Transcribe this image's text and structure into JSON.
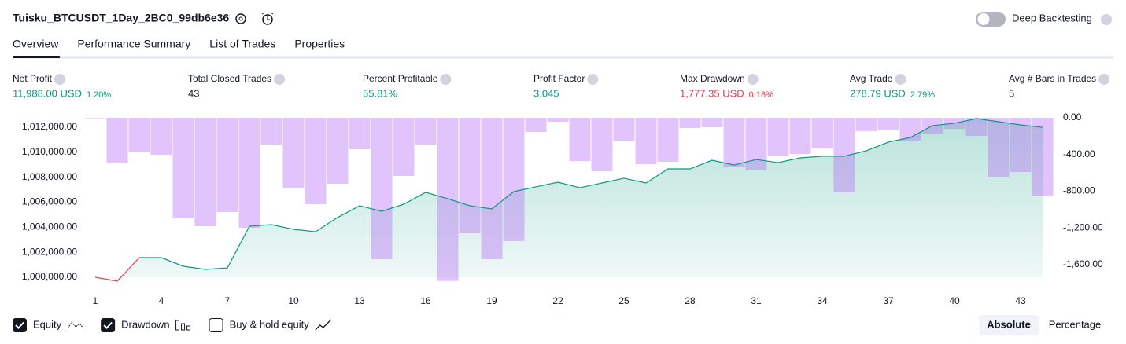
{
  "header": {
    "title": "Tuisku_BTCUSDT_1Day_2BC0_99db6e36",
    "toggle_label": "Deep Backtesting"
  },
  "tabs": [
    "Overview",
    "Performance Summary",
    "List of Trades",
    "Properties"
  ],
  "stats": [
    {
      "label": "Net Profit",
      "value": "11,988.00 USD",
      "percent": "1.20%",
      "tone": "green"
    },
    {
      "label": "Total Closed Trades",
      "value": "43",
      "tone": "plain"
    },
    {
      "label": "Percent Profitable",
      "value": "55.81%",
      "tone": "green"
    },
    {
      "label": "Profit Factor",
      "value": "3.045",
      "tone": "green"
    },
    {
      "label": "Max Drawdown",
      "value": "1,777.35 USD",
      "percent": "0.18%",
      "tone": "red"
    },
    {
      "label": "Avg Trade",
      "value": "278.79 USD",
      "percent": "2.79%",
      "tone": "green"
    },
    {
      "label": "Avg # Bars in Trades",
      "value": "5",
      "tone": "plain"
    }
  ],
  "legend": [
    {
      "name": "Equity",
      "checked": true
    },
    {
      "name": "Drawdown",
      "checked": true
    },
    {
      "name": "Buy & hold equity",
      "checked": false
    }
  ],
  "buttons": [
    "Absolute",
    "Percentage"
  ],
  "chart_data": {
    "type": "equity_drawdown",
    "x": [
      1,
      2,
      3,
      4,
      5,
      6,
      7,
      8,
      9,
      10,
      11,
      12,
      13,
      14,
      15,
      16,
      17,
      18,
      19,
      20,
      21,
      22,
      23,
      24,
      25,
      26,
      27,
      28,
      29,
      30,
      31,
      32,
      33,
      34,
      35,
      36,
      37,
      38,
      39,
      40,
      41,
      42,
      43,
      44
    ],
    "xlim": [
      0.5,
      44.5
    ],
    "xticks": [
      1,
      4,
      7,
      10,
      13,
      16,
      19,
      22,
      25,
      28,
      31,
      34,
      37,
      40,
      43
    ],
    "series": [
      {
        "name": "Equity",
        "color": "#089981",
        "values": [
          1000000,
          999690,
          1001570,
          1001570,
          1000880,
          1000630,
          1000750,
          1004080,
          1004210,
          1003830,
          1003640,
          1004780,
          1005720,
          1005280,
          1005840,
          1006790,
          1006280,
          1005720,
          1005470,
          1006850,
          1007230,
          1007600,
          1007160,
          1007540,
          1007920,
          1007540,
          1008670,
          1008670,
          1009360,
          1008980,
          1009420,
          1009170,
          1009550,
          1009680,
          1009680,
          1010120,
          1010810,
          1011180,
          1012130,
          1012320,
          1012690,
          1012440,
          1012190,
          1011988
        ]
      },
      {
        "name": "Drawdown",
        "color": "#b36bf5",
        "axis": "y2",
        "values": [
          -5,
          -488,
          -376,
          -402,
          -1095,
          -1181,
          -1027,
          -1198,
          -291,
          -762,
          -941,
          -719,
          -342,
          -1540,
          -633,
          -291,
          -1777,
          -1258,
          -1540,
          -1343,
          -154,
          -43,
          -471,
          -582,
          -257,
          -505,
          -479,
          -111,
          -103,
          -539,
          -565,
          -411,
          -394,
          -334,
          -813,
          -145,
          -128,
          -248,
          -171,
          -120,
          -197,
          -642,
          -590,
          -847
        ]
      }
    ],
    "ylim": [
      999560,
      1012755
    ],
    "yticks": [
      {
        "value": 1000000,
        "label": "1,000,000.00"
      },
      {
        "value": 1002000,
        "label": "1,002,000.00"
      },
      {
        "value": 1004000,
        "label": "1,004,000.00"
      },
      {
        "value": 1006000,
        "label": "1,006,000.00"
      },
      {
        "value": 1008000,
        "label": "1,008,000.00"
      },
      {
        "value": 1010000,
        "label": "1,010,000.00"
      },
      {
        "value": 1012000,
        "label": "1,012,000.00"
      }
    ],
    "y2lim": [
      -1797,
      0
    ],
    "y2ticks": [
      {
        "value": 0,
        "label": "0.00"
      },
      {
        "value": -400,
        "label": "-400.00"
      },
      {
        "value": -800,
        "label": "-800.00"
      },
      {
        "value": -1200,
        "label": "-1,200.00"
      },
      {
        "value": -1600,
        "label": "-1,600.00"
      }
    ],
    "loss_color": "#f23645"
  }
}
